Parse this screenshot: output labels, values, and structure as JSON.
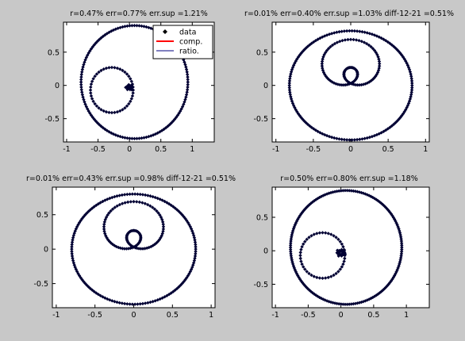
{
  "figure": {
    "background": "#c8c8c8",
    "axes_background": "#ffffff"
  },
  "legend": {
    "entries": [
      {
        "label": "data",
        "marker": "diamond",
        "color": "#000000"
      },
      {
        "label": "comp.",
        "line": "solid",
        "color": "#ff0000"
      },
      {
        "label": "ratio.",
        "line": "solid",
        "color": "#00007f"
      }
    ]
  },
  "chart_data": [
    {
      "type": "scatter",
      "title": "r=0.47% err=0.77% err.sup =1.21%",
      "xlim": [
        -1.05,
        1.35
      ],
      "ylim": [
        -0.85,
        0.95
      ],
      "xticks": [
        -1,
        -0.5,
        0,
        0.5,
        1
      ],
      "xtick_labels": [
        "-1",
        "-0.5",
        "0",
        "0.5",
        "1"
      ],
      "yticks": [
        -0.5,
        0,
        0.5
      ],
      "ytick_labels": [
        "-0.5",
        "0",
        "0.5"
      ],
      "legend_position": "top-right",
      "series": [
        {
          "name": "data",
          "curve": {
            "kind": "circle",
            "cx": 0.08,
            "cy": 0.05,
            "r": 0.85,
            "points": 140
          },
          "color": "#000033"
        },
        {
          "name": "data",
          "curve": {
            "kind": "circle",
            "cx": -0.28,
            "cy": -0.07,
            "r": 0.34,
            "points": 48
          },
          "color": "#000033"
        },
        {
          "name": "data",
          "curve": {
            "kind": "cluster",
            "cx": 0.0,
            "cy": -0.03,
            "r": 0.06,
            "points": 14
          },
          "color": "#000033"
        },
        {
          "name": "comp.",
          "curve": {
            "kind": "arc",
            "cx": 0.08,
            "cy": 0.05,
            "r": 0.85,
            "from_deg": -57,
            "to_deg": 25
          },
          "color": "#ff0000"
        },
        {
          "name": "ratio.",
          "curve": {
            "kind": "arc",
            "cx": 0.08,
            "cy": 0.05,
            "r": 0.85,
            "from_deg": 0,
            "to_deg": 360
          },
          "color": "#00007f"
        }
      ]
    },
    {
      "type": "scatter",
      "title": "r=0.01% err=0.40% err.sup =1.03% diff-12-21 =0.51%",
      "xlim": [
        -1.05,
        1.05
      ],
      "ylim": [
        -0.85,
        0.95
      ],
      "xticks": [
        -1,
        -0.5,
        0,
        0.5,
        1
      ],
      "xtick_labels": [
        "-1",
        "-0.5",
        "0",
        "0.5",
        "1"
      ],
      "yticks": [
        -0.5,
        0,
        0.5
      ],
      "ytick_labels": [
        "-0.5",
        "0",
        "0.5"
      ],
      "series": [
        {
          "name": "data",
          "curve": {
            "kind": "circle",
            "cx": 0.0,
            "cy": 0.0,
            "r": 0.82,
            "points": 150
          },
          "color": "#000033"
        },
        {
          "name": "data",
          "curve": {
            "kind": "limacon",
            "a": 0.21,
            "b": 0.45,
            "points": 110
          },
          "color": "#000033"
        },
        {
          "name": "ratio.",
          "curve": {
            "kind": "arc",
            "cx": 0.0,
            "cy": 0.0,
            "r": 0.82,
            "from_deg": 0,
            "to_deg": 360
          },
          "color": "#00007f"
        }
      ]
    },
    {
      "type": "scatter",
      "title": "r=0.01% err=0.43% err.sup =0.98% diff-12-21 =0.51%",
      "xlim": [
        -1.05,
        1.05
      ],
      "ylim": [
        -0.85,
        0.9
      ],
      "xticks": [
        -1,
        -0.5,
        0,
        0.5,
        1
      ],
      "xtick_labels": [
        "-1",
        "-0.5",
        "0",
        "0.5",
        "1"
      ],
      "yticks": [
        -0.5,
        0,
        0.5
      ],
      "ytick_labels": [
        "-0.5",
        "0",
        "0.5"
      ],
      "series": [
        {
          "name": "data",
          "curve": {
            "kind": "circle",
            "cx": 0.0,
            "cy": 0.0,
            "r": 0.8,
            "points": 150
          },
          "color": "#000033"
        },
        {
          "name": "data",
          "curve": {
            "kind": "limacon",
            "a": 0.21,
            "b": 0.45,
            "points": 110
          },
          "color": "#000033"
        },
        {
          "name": "ratio.",
          "curve": {
            "kind": "arc",
            "cx": 0.0,
            "cy": 0.0,
            "r": 0.8,
            "from_deg": 0,
            "to_deg": 360
          },
          "color": "#00007f"
        }
      ]
    },
    {
      "type": "scatter",
      "title": "r=0.50% err=0.80% err.sup =1.18%",
      "xlim": [
        -1.05,
        1.35
      ],
      "ylim": [
        -0.85,
        0.95
      ],
      "xticks": [
        -1,
        -0.5,
        0,
        0.5,
        1
      ],
      "xtick_labels": [
        "-1",
        "-0.5",
        "0",
        "0.5",
        "1"
      ],
      "yticks": [
        -0.5,
        0,
        0.5
      ],
      "ytick_labels": [
        "-0.5",
        "0",
        "0.5"
      ],
      "series": [
        {
          "name": "data",
          "curve": {
            "kind": "circle",
            "cx": 0.08,
            "cy": 0.05,
            "r": 0.85,
            "points": 170
          },
          "color": "#000033"
        },
        {
          "name": "data",
          "curve": {
            "kind": "circle",
            "cx": -0.28,
            "cy": -0.07,
            "r": 0.34,
            "points": 48
          },
          "color": "#000033"
        },
        {
          "name": "data",
          "curve": {
            "kind": "cluster",
            "cx": 0.0,
            "cy": -0.03,
            "r": 0.07,
            "points": 18
          },
          "color": "#000033"
        },
        {
          "name": "comp.",
          "curve": {
            "kind": "arc",
            "cx": 0.08,
            "cy": 0.05,
            "r": 0.85,
            "from_deg": -57,
            "to_deg": 25
          },
          "color": "#ff0000"
        },
        {
          "name": "ratio.",
          "curve": {
            "kind": "arc",
            "cx": 0.08,
            "cy": 0.05,
            "r": 0.85,
            "from_deg": 0,
            "to_deg": 360
          },
          "color": "#00007f"
        }
      ]
    }
  ]
}
